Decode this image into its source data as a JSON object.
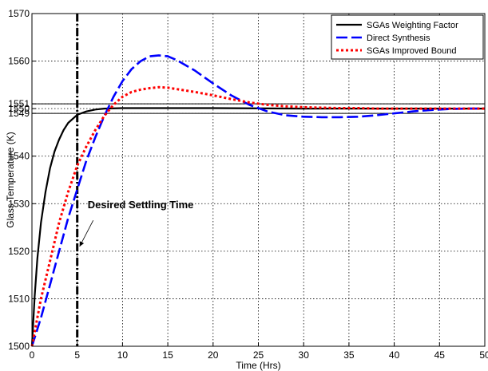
{
  "chart_data": {
    "type": "line",
    "title": "",
    "xlabel": "Time (Hrs)",
    "ylabel": "Glass Temperature (K)",
    "xlim": [
      0,
      50
    ],
    "ylim": [
      1500,
      1570
    ],
    "grid": true,
    "legend_position": "top-right",
    "x_ticks": [
      0,
      5,
      10,
      15,
      20,
      25,
      30,
      35,
      40,
      45,
      50
    ],
    "y_ticks": [
      1500,
      1510,
      1520,
      1530,
      1540,
      1549,
      1550,
      1551,
      1560,
      1570
    ],
    "reference_lines": [
      {
        "axis": "y",
        "value": 1549,
        "style": "solid"
      },
      {
        "axis": "y",
        "value": 1551,
        "style": "solid"
      },
      {
        "axis": "x",
        "value": 5,
        "style": "dash-dot"
      }
    ],
    "annotations": [
      {
        "text": "Desired Settling Time",
        "x": 5,
        "y": 1521
      }
    ],
    "series": [
      {
        "name": "SGAs Weighting Factor",
        "color": "#000000",
        "dash": "solid",
        "x": [
          0,
          0.3,
          0.6,
          1,
          1.5,
          2,
          2.5,
          3,
          3.5,
          4,
          5,
          6,
          7,
          8,
          10,
          15,
          20,
          30,
          40,
          50
        ],
        "y": [
          1500,
          1510.5,
          1518.5,
          1526,
          1532.5,
          1537.5,
          1541,
          1543.5,
          1545.5,
          1547,
          1548.7,
          1549.4,
          1549.8,
          1550,
          1550.1,
          1550.1,
          1550.1,
          1550,
          1550,
          1550
        ]
      },
      {
        "name": "Direct Synthesis",
        "color": "#0000ff",
        "dash": "dashed",
        "x": [
          0,
          1,
          2,
          3,
          4,
          5,
          6,
          7,
          8,
          9,
          10,
          11,
          12,
          13,
          14,
          15,
          16,
          18,
          20,
          22,
          24,
          26,
          28,
          30,
          32,
          34,
          36,
          38,
          40,
          42,
          44,
          46,
          48,
          50
        ],
        "y": [
          1500,
          1506,
          1513,
          1520,
          1527,
          1533,
          1539,
          1544,
          1548.5,
          1552.5,
          1555.8,
          1558.3,
          1560,
          1561,
          1561.2,
          1561,
          1560.2,
          1558,
          1555.3,
          1552.8,
          1550.8,
          1549.4,
          1548.6,
          1548.3,
          1548.2,
          1548.2,
          1548.3,
          1548.6,
          1549,
          1549.4,
          1549.7,
          1549.9,
          1550,
          1550
        ]
      },
      {
        "name": "SGAs Improved Bound",
        "color": "#ff0000",
        "dash": "dotted",
        "x": [
          0,
          1,
          2,
          3,
          4,
          5,
          6,
          7,
          8,
          9,
          10,
          11,
          12,
          13,
          14,
          15,
          16,
          18,
          20,
          22,
          24,
          26,
          28,
          30,
          32,
          34,
          36,
          38,
          40,
          42,
          44,
          46,
          48,
          50
        ],
        "y": [
          1500,
          1510,
          1518,
          1526,
          1532.5,
          1538,
          1542,
          1545.5,
          1548.5,
          1550.8,
          1552.5,
          1553.5,
          1554,
          1554.3,
          1554.5,
          1554.4,
          1554.1,
          1553.5,
          1552.8,
          1552,
          1551.3,
          1550.8,
          1550.5,
          1550.3,
          1550.2,
          1550.1,
          1550.1,
          1550,
          1550,
          1550,
          1550,
          1550,
          1550,
          1550
        ]
      }
    ]
  }
}
